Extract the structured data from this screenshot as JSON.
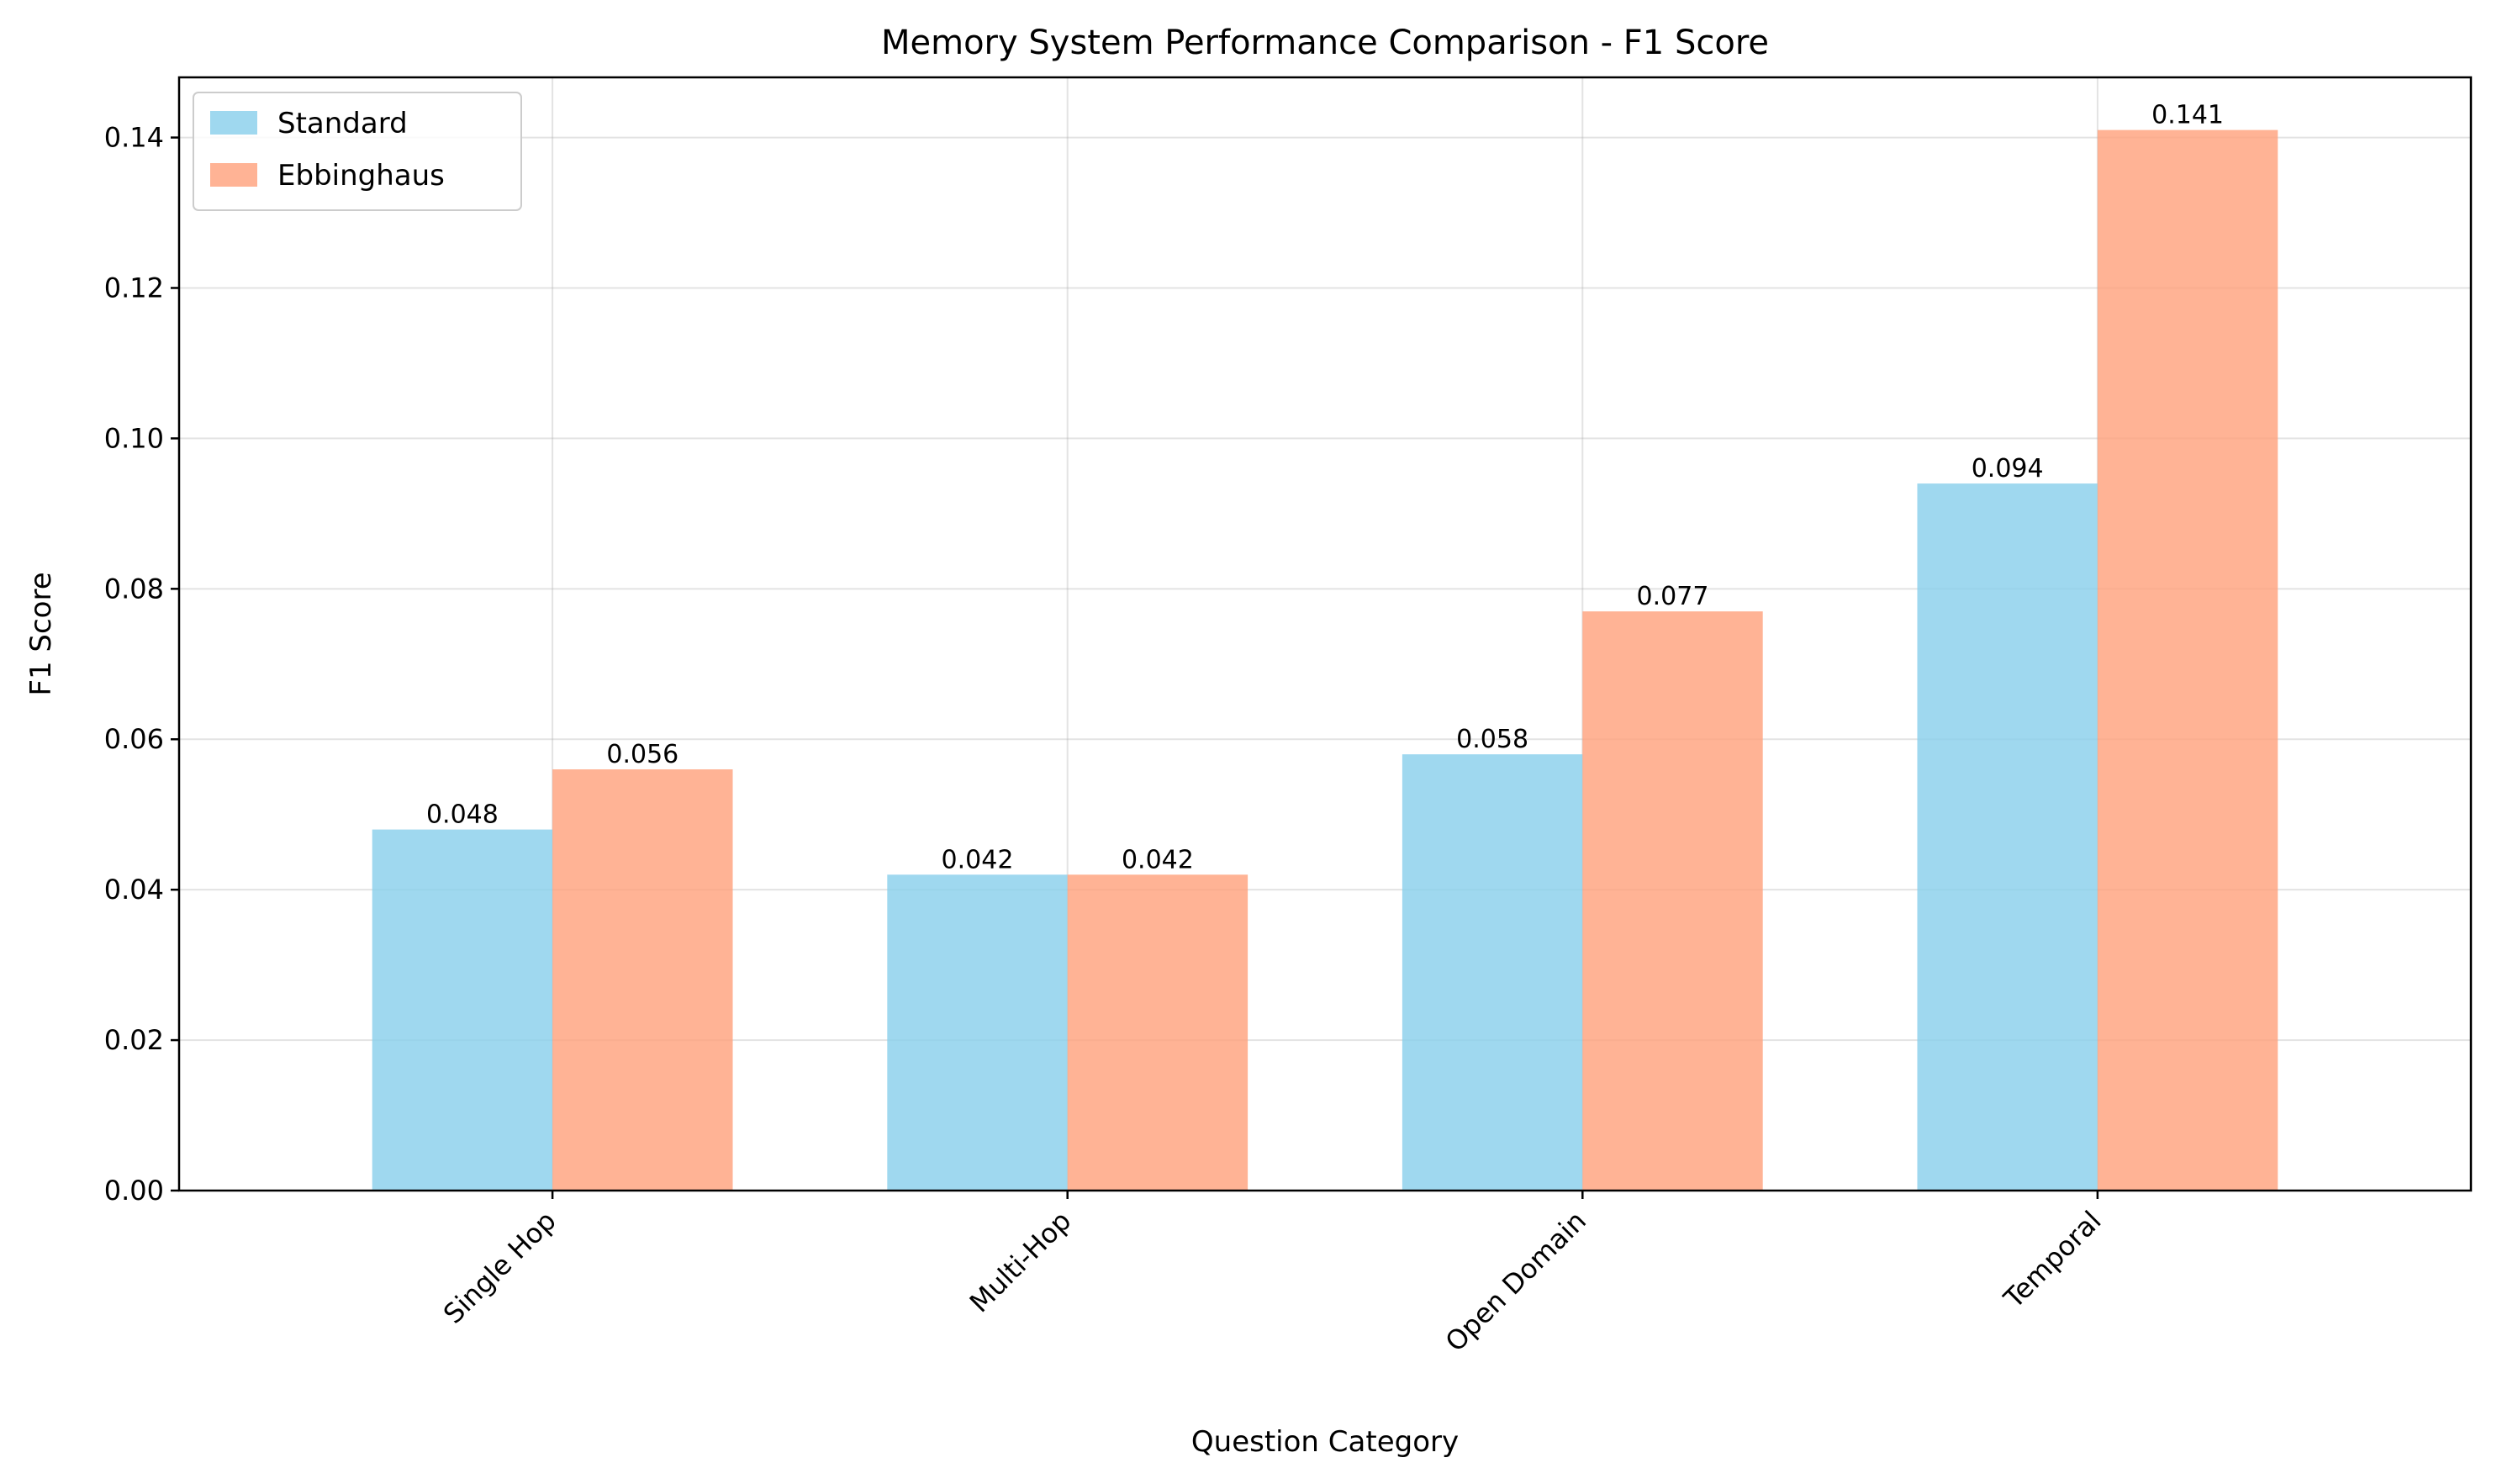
{
  "chart_data": {
    "type": "bar",
    "title": "Memory System Performance Comparison - F1 Score",
    "xlabel": "Question Category",
    "ylabel": "F1 Score",
    "categories": [
      "Single Hop",
      "Multi-Hop",
      "Open Domain",
      "Temporal"
    ],
    "series": [
      {
        "name": "Standard",
        "color": "#87CEEB",
        "values": [
          0.048,
          0.042,
          0.058,
          0.094
        ],
        "labels": [
          "0.048",
          "0.042",
          "0.058",
          "0.094"
        ]
      },
      {
        "name": "Ebbinghaus",
        "color": "#FFA07A",
        "values": [
          0.056,
          0.042,
          0.077,
          0.141
        ],
        "labels": [
          "0.056",
          "0.042",
          "0.077",
          "0.141"
        ]
      }
    ],
    "ylim": [
      0,
      0.148
    ],
    "yticks": [
      0.0,
      0.02,
      0.04,
      0.06,
      0.08,
      0.1,
      0.12,
      0.14
    ],
    "ytick_labels": [
      "0.00",
      "0.02",
      "0.04",
      "0.06",
      "0.08",
      "0.10",
      "0.12",
      "0.14"
    ],
    "grid": true,
    "legend_position": "top-left"
  }
}
